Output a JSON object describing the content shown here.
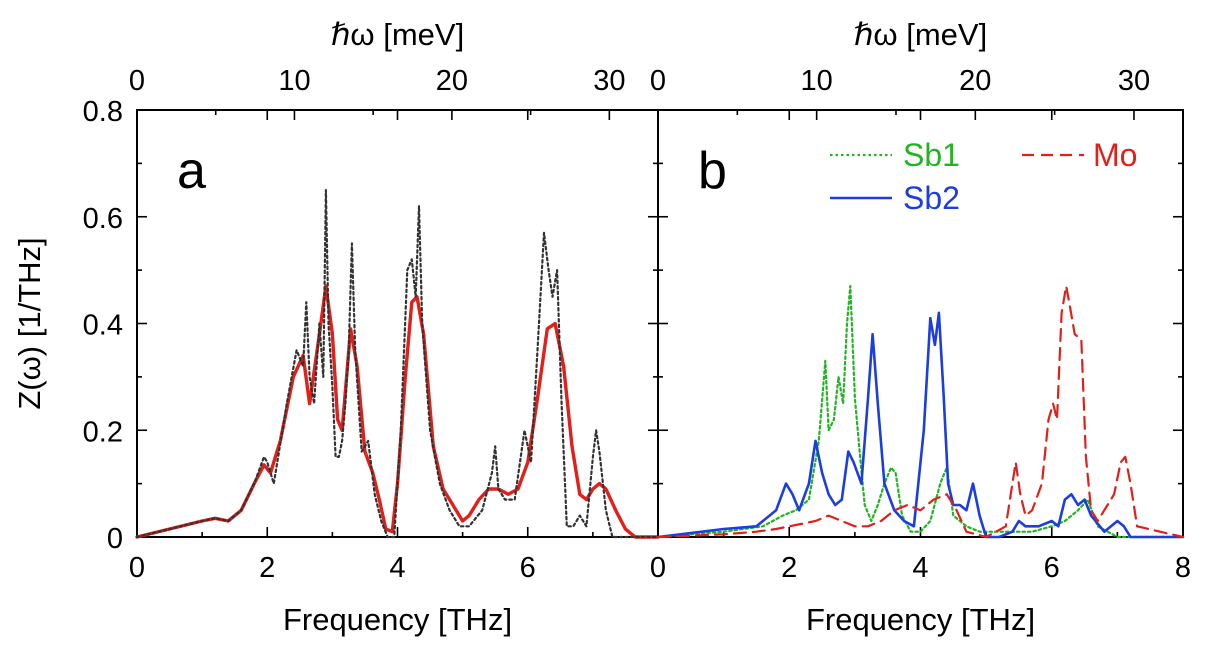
{
  "chart_data": [
    {
      "type": "line",
      "panel_label": "a",
      "xlabel": "Frequency [THz]",
      "ylabel": "Z(ω) [1/THz]",
      "top_xlabel": "ℏω [meV]",
      "xlim": [
        0,
        8
      ],
      "ylim": [
        0,
        0.8
      ],
      "top_xlim_meV": [
        0,
        33.09
      ],
      "x_ticks": [
        0,
        2,
        4,
        6
      ],
      "x_tick_labels": [
        "0",
        "2",
        "4",
        "6"
      ],
      "y_ticks": [
        0,
        0.2,
        0.4,
        0.6,
        0.8
      ],
      "y_tick_labels": [
        "0",
        "0.2",
        "0.4",
        "0.6",
        "0.8"
      ],
      "top_ticks": [
        0,
        10,
        20,
        30
      ],
      "top_tick_labels": [
        "0",
        "10",
        "20",
        "30"
      ],
      "legend": "none",
      "series": [
        {
          "name": "",
          "color": "#e0201a",
          "style": "solid",
          "x": [
            0,
            0.5,
            1.0,
            1.2,
            1.4,
            1.6,
            1.8,
            1.95,
            2.05,
            2.2,
            2.4,
            2.55,
            2.65,
            2.8,
            2.9,
            3.0,
            3.08,
            3.15,
            3.28,
            3.38,
            3.5,
            3.62,
            3.72,
            3.82,
            3.92,
            4.0,
            4.12,
            4.22,
            4.3,
            4.4,
            4.55,
            4.7,
            4.85,
            5.0,
            5.1,
            5.25,
            5.4,
            5.55,
            5.7,
            5.85,
            6.0,
            6.15,
            6.3,
            6.42,
            6.55,
            6.68,
            6.8,
            6.9,
            7.0,
            7.1,
            7.2,
            7.35,
            7.5,
            7.65,
            8.0
          ],
          "y": [
            0,
            0.015,
            0.03,
            0.035,
            0.03,
            0.05,
            0.1,
            0.135,
            0.12,
            0.18,
            0.3,
            0.34,
            0.25,
            0.38,
            0.47,
            0.38,
            0.22,
            0.2,
            0.39,
            0.32,
            0.16,
            0.12,
            0.07,
            0.015,
            0.01,
            0.1,
            0.3,
            0.44,
            0.45,
            0.38,
            0.17,
            0.09,
            0.06,
            0.03,
            0.04,
            0.07,
            0.09,
            0.09,
            0.08,
            0.09,
            0.14,
            0.26,
            0.39,
            0.4,
            0.32,
            0.17,
            0.08,
            0.07,
            0.09,
            0.1,
            0.09,
            0.05,
            0.015,
            0,
            0
          ]
        },
        {
          "name": "",
          "color": "#333333",
          "style": "dotted",
          "x": [
            0,
            0.5,
            1.0,
            1.2,
            1.4,
            1.6,
            1.8,
            1.95,
            2.0,
            2.1,
            2.3,
            2.45,
            2.55,
            2.6,
            2.65,
            2.72,
            2.8,
            2.86,
            2.9,
            2.94,
            3.0,
            3.05,
            3.1,
            3.15,
            3.2,
            3.25,
            3.3,
            3.35,
            3.45,
            3.55,
            3.65,
            3.75,
            3.85,
            3.95,
            4.05,
            4.15,
            4.22,
            4.28,
            4.33,
            4.38,
            4.5,
            4.65,
            4.8,
            4.95,
            5.1,
            5.3,
            5.45,
            5.5,
            5.55,
            5.65,
            5.8,
            5.95,
            6.05,
            6.15,
            6.25,
            6.32,
            6.38,
            6.45,
            6.52,
            6.6,
            6.7,
            6.8,
            6.9,
            7.0,
            7.05,
            7.1,
            7.2,
            7.3,
            7.4,
            7.6,
            8.0
          ],
          "y": [
            0,
            0.015,
            0.03,
            0.035,
            0.03,
            0.05,
            0.1,
            0.15,
            0.14,
            0.1,
            0.25,
            0.35,
            0.32,
            0.44,
            0.3,
            0.25,
            0.4,
            0.3,
            0.65,
            0.4,
            0.28,
            0.15,
            0.15,
            0.18,
            0.25,
            0.35,
            0.55,
            0.35,
            0.16,
            0.18,
            0.08,
            0.03,
            0,
            0,
            0.2,
            0.5,
            0.52,
            0.45,
            0.62,
            0.4,
            0.2,
            0.1,
            0.05,
            0.02,
            0.02,
            0.05,
            0.12,
            0.17,
            0.09,
            0.07,
            0.07,
            0.2,
            0.14,
            0.35,
            0.57,
            0.5,
            0.45,
            0.5,
            0.25,
            0.02,
            0.02,
            0.04,
            0.02,
            0.15,
            0.2,
            0.16,
            0.05,
            0,
            0,
            0,
            0
          ]
        }
      ]
    },
    {
      "type": "line",
      "panel_label": "b",
      "xlabel": "Frequency [THz]",
      "ylabel": "",
      "top_xlabel": "ℏω [meV]",
      "xlim": [
        0,
        8
      ],
      "ylim": [
        0,
        0.8
      ],
      "top_xlim_meV": [
        0,
        33.09
      ],
      "x_ticks": [
        0,
        2,
        4,
        6,
        8
      ],
      "x_tick_labels": [
        "0",
        "2",
        "4",
        "6",
        "8"
      ],
      "y_ticks": [
        0,
        0.2,
        0.4,
        0.6,
        0.8
      ],
      "top_ticks": [
        0,
        10,
        20,
        30
      ],
      "top_tick_labels": [
        "0",
        "10",
        "20",
        "30"
      ],
      "legend": "top-right",
      "series": [
        {
          "name": "Sb1",
          "color": "#22b422",
          "style": "dotted",
          "x": [
            0,
            1.0,
            1.6,
            1.9,
            2.1,
            2.3,
            2.45,
            2.55,
            2.6,
            2.68,
            2.75,
            2.82,
            2.88,
            2.93,
            3.0,
            3.08,
            3.15,
            3.25,
            3.35,
            3.45,
            3.55,
            3.62,
            3.72,
            3.85,
            4.0,
            4.15,
            4.3,
            4.4,
            4.5,
            4.7,
            4.9,
            5.1,
            5.4,
            5.7,
            6.0,
            6.2,
            6.4,
            6.55,
            6.7,
            7.0,
            8.0
          ],
          "y": [
            0,
            0.01,
            0.02,
            0.04,
            0.05,
            0.07,
            0.18,
            0.33,
            0.2,
            0.22,
            0.3,
            0.25,
            0.4,
            0.47,
            0.26,
            0.15,
            0.06,
            0.03,
            0.06,
            0.1,
            0.13,
            0.12,
            0.04,
            0.01,
            0.01,
            0.03,
            0.1,
            0.13,
            0.04,
            0.02,
            0.01,
            0.01,
            0.01,
            0.01,
            0.02,
            0.03,
            0.05,
            0.07,
            0.02,
            0,
            0
          ]
        },
        {
          "name": "Sb2",
          "color": "#1c3ee0",
          "style": "solid",
          "x": [
            0,
            1.0,
            1.5,
            1.8,
            1.95,
            2.05,
            2.15,
            2.3,
            2.4,
            2.5,
            2.6,
            2.7,
            2.8,
            2.9,
            2.98,
            3.1,
            3.2,
            3.27,
            3.35,
            3.45,
            3.6,
            3.75,
            3.9,
            4.05,
            4.15,
            4.22,
            4.28,
            4.35,
            4.42,
            4.5,
            4.6,
            4.7,
            4.8,
            4.9,
            5.0,
            5.2,
            5.4,
            5.5,
            5.6,
            5.8,
            6.0,
            6.1,
            6.2,
            6.3,
            6.4,
            6.5,
            6.6,
            6.8,
            7.0,
            7.1,
            7.2,
            8.0
          ],
          "y": [
            0,
            0.015,
            0.02,
            0.05,
            0.1,
            0.08,
            0.05,
            0.1,
            0.18,
            0.12,
            0.08,
            0.06,
            0.07,
            0.16,
            0.14,
            0.1,
            0.26,
            0.38,
            0.25,
            0.1,
            0.05,
            0.03,
            0.02,
            0.2,
            0.41,
            0.36,
            0.42,
            0.27,
            0.1,
            0.06,
            0.06,
            0.05,
            0.1,
            0.04,
            0.0,
            0,
            0.01,
            0.03,
            0.02,
            0.02,
            0.03,
            0.02,
            0.07,
            0.08,
            0.06,
            0.07,
            0.04,
            0.01,
            0.03,
            0.02,
            0,
            0
          ]
        },
        {
          "name": "Mo",
          "color": "#e0201a",
          "style": "dashed",
          "x": [
            0,
            1.0,
            1.5,
            1.8,
            2.0,
            2.2,
            2.4,
            2.6,
            2.8,
            3.0,
            3.2,
            3.4,
            3.6,
            3.8,
            4.0,
            4.2,
            4.4,
            4.55,
            4.7,
            5.0,
            5.3,
            5.45,
            5.52,
            5.6,
            5.7,
            5.85,
            5.95,
            6.02,
            6.08,
            6.15,
            6.22,
            6.28,
            6.35,
            6.45,
            6.52,
            6.6,
            6.7,
            6.85,
            6.95,
            7.05,
            7.12,
            7.2,
            7.3,
            8.0
          ],
          "y": [
            0,
            0.005,
            0.01,
            0.015,
            0.02,
            0.025,
            0.03,
            0.04,
            0.03,
            0.02,
            0.02,
            0.03,
            0.05,
            0.06,
            0.05,
            0.07,
            0.08,
            0.05,
            0.01,
            0,
            0.02,
            0.14,
            0.08,
            0.04,
            0.05,
            0.1,
            0.22,
            0.25,
            0.22,
            0.42,
            0.47,
            0.43,
            0.38,
            0.37,
            0.15,
            0.05,
            0.03,
            0.06,
            0.08,
            0.14,
            0.15,
            0.1,
            0.02,
            0
          ]
        }
      ]
    }
  ]
}
